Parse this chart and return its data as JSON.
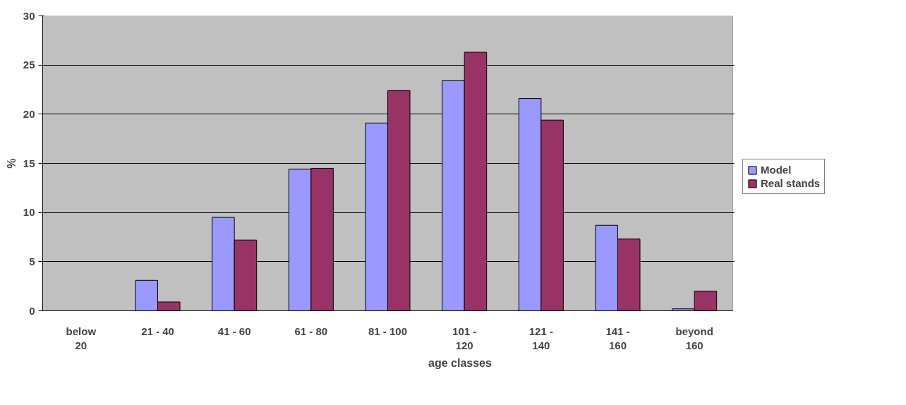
{
  "chart_data": {
    "type": "bar",
    "xlabel": "age classes",
    "ylabel": "%",
    "categories": [
      "below\n20",
      "21 - 40",
      "41 - 60",
      "61 - 80",
      "81 - 100",
      "101 -\n120",
      "121 -\n140",
      "141 -\n160",
      "beyond\n160"
    ],
    "series": [
      {
        "name": "Model",
        "color": "#9999ff",
        "values": [
          null,
          3.1,
          9.5,
          14.4,
          19.1,
          23.4,
          21.6,
          8.7,
          0.2
        ]
      },
      {
        "name": "Real stands",
        "color": "#993366",
        "values": [
          null,
          0.9,
          7.2,
          14.5,
          22.4,
          26.3,
          19.4,
          7.3,
          2.0
        ]
      }
    ],
    "ylim": [
      0,
      30
    ],
    "yticks": [
      0,
      5,
      10,
      15,
      20,
      25,
      30
    ],
    "grid": "y",
    "legend": "right"
  }
}
